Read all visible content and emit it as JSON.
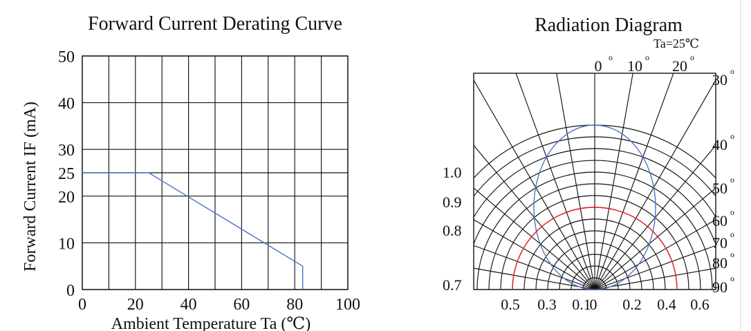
{
  "chart_data": [
    {
      "type": "line",
      "title": "Forward Current Derating Curve",
      "xlabel": "Ambient Temperature Ta (℃)",
      "ylabel": "Forward Current IF (mA)",
      "xlim": [
        0,
        100
      ],
      "ylim": [
        0,
        50
      ],
      "xticks": [
        "0",
        "20",
        "40",
        "60",
        "80",
        "100"
      ],
      "yticks": [
        "0",
        "10",
        "20",
        "25",
        "30",
        "40",
        "50"
      ],
      "grid": true,
      "series": [
        {
          "x": [
            0,
            25,
            83,
            83
          ],
          "y": [
            25,
            25,
            5,
            0
          ],
          "color": "#4b73c7"
        }
      ]
    },
    {
      "type": "polar",
      "title": "Radiation Diagram",
      "annotation": "Ta=25℃",
      "angle_ticks": [
        "0",
        "10",
        "20",
        "30",
        "40",
        "50",
        "60",
        "70",
        "80",
        "90"
      ],
      "degree_symbol": "o",
      "left_scale_ticks": [
        "1.0",
        "0.9",
        "0.8",
        "0.7"
      ],
      "bottom_ticks": [
        "0.5",
        "0.3",
        "0.1",
        "0",
        "0.2",
        "0.4",
        "0.6"
      ],
      "grid": true,
      "series": [
        {
          "shape": "ellipse",
          "color": "#4b73c7",
          "x": [
            -0.37,
            0.37
          ],
          "y": [
            0,
            1.0
          ]
        },
        {
          "shape": "semicircle",
          "color": "#e51c23",
          "x": [
            -0.5,
            0.5
          ],
          "y": [
            0,
            0.5
          ]
        }
      ]
    }
  ]
}
